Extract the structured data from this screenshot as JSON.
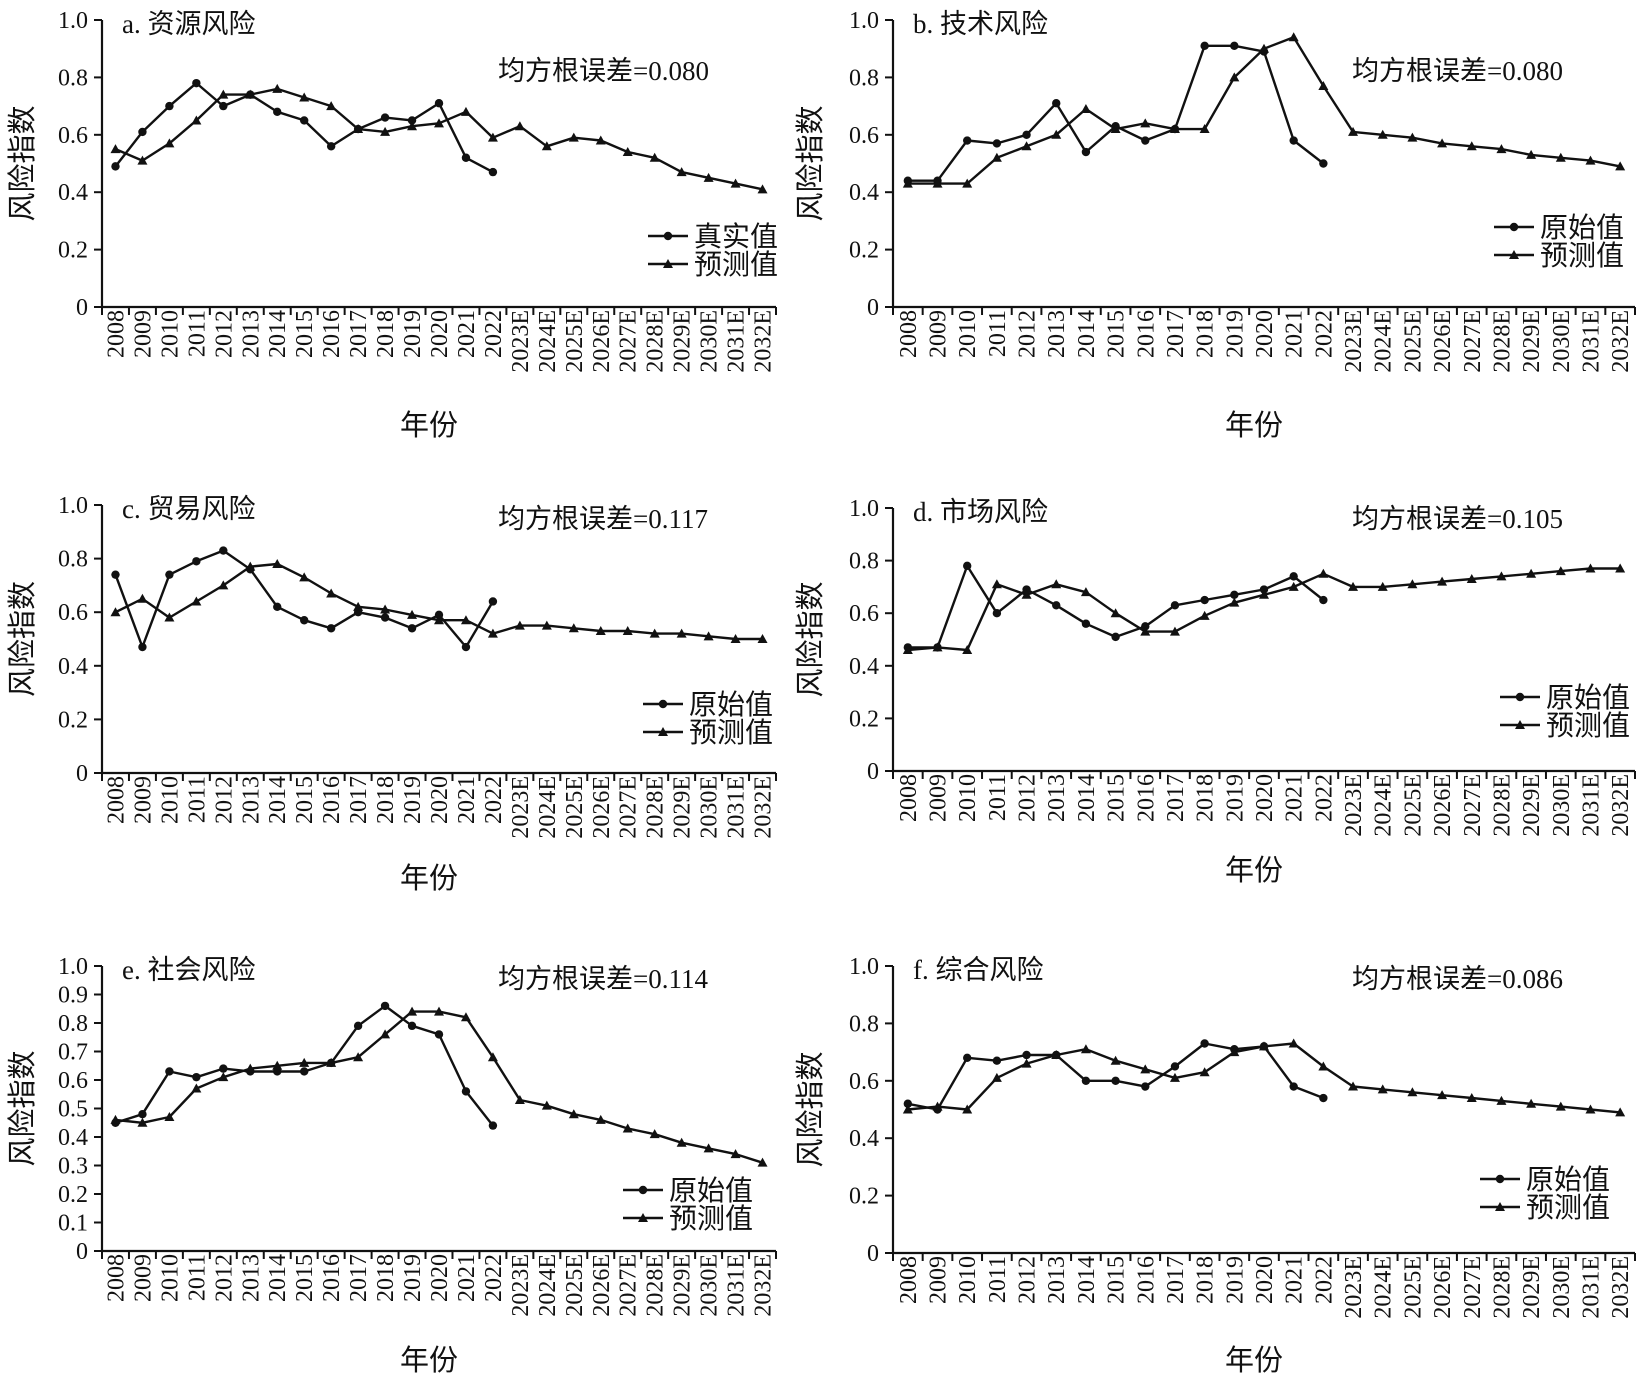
{
  "chart_data": [
    {
      "type": "line",
      "title": "a. 资源风险",
      "annotation": "均方根误差=0.080",
      "xlabel": "年份",
      "ylabel": "风险指数",
      "ylim": [
        0,
        1.0
      ],
      "yticks": [
        "0",
        "0.2",
        "0.4",
        "0.6",
        "0.8",
        "1.0"
      ],
      "categories": [
        "2008",
        "2009",
        "2010",
        "2011",
        "2012",
        "2013",
        "2014",
        "2015",
        "2016",
        "2017",
        "2018",
        "2019",
        "2020",
        "2021",
        "2022",
        "2023E",
        "2024E",
        "2025E",
        "2026E",
        "2027E",
        "2028E",
        "2029E",
        "2030E",
        "2031E",
        "2032E"
      ],
      "legend_position": "center-right",
      "series": [
        {
          "name": "真实值",
          "marker": "circle",
          "values": [
            0.49,
            0.61,
            0.7,
            0.78,
            0.7,
            0.74,
            0.68,
            0.65,
            0.56,
            0.62,
            0.66,
            0.65,
            0.71,
            0.52,
            0.47,
            null,
            null,
            null,
            null,
            null,
            null,
            null,
            null,
            null,
            null
          ]
        },
        {
          "name": "预测值",
          "marker": "triangle",
          "values": [
            0.55,
            0.51,
            0.57,
            0.65,
            0.74,
            0.74,
            0.76,
            0.73,
            0.7,
            0.62,
            0.61,
            0.63,
            0.64,
            0.68,
            0.59,
            0.63,
            0.56,
            0.59,
            0.58,
            0.54,
            0.52,
            0.47,
            0.45,
            0.43,
            0.41
          ]
        }
      ]
    },
    {
      "type": "line",
      "title": "b. 技术风险",
      "annotation": "均方根误差=0.080",
      "xlabel": "年份",
      "ylabel": "风险指数",
      "ylim": [
        0,
        1.0
      ],
      "yticks": [
        "0",
        "0.2",
        "0.4",
        "0.6",
        "0.8",
        "1.0"
      ],
      "categories": [
        "2008",
        "2009",
        "2010",
        "2011",
        "2012",
        "2013",
        "2014",
        "2015",
        "2016",
        "2017",
        "2018",
        "2019",
        "2020",
        "2021",
        "2022",
        "2023E",
        "2024E",
        "2025E",
        "2026E",
        "2027E",
        "2028E",
        "2029E",
        "2030E",
        "2031E",
        "2032E"
      ],
      "legend_position": "center-right",
      "series": [
        {
          "name": "原始值",
          "marker": "circle",
          "values": [
            0.44,
            0.44,
            0.58,
            0.57,
            0.6,
            0.71,
            0.54,
            0.63,
            0.58,
            0.62,
            0.91,
            0.91,
            0.89,
            0.58,
            0.5,
            null,
            null,
            null,
            null,
            null,
            null,
            null,
            null,
            null,
            null
          ]
        },
        {
          "name": "预测值",
          "marker": "triangle",
          "values": [
            0.43,
            0.43,
            0.43,
            0.52,
            0.56,
            0.6,
            0.69,
            0.62,
            0.64,
            0.62,
            0.62,
            0.8,
            0.9,
            0.94,
            0.77,
            0.61,
            0.6,
            0.59,
            0.57,
            0.56,
            0.55,
            0.53,
            0.52,
            0.51,
            0.49
          ]
        }
      ]
    },
    {
      "type": "line",
      "title": "c. 贸易风险",
      "annotation": "均方根误差=0.117",
      "xlabel": "年份",
      "ylabel": "风险指数",
      "ylim": [
        0,
        1.0
      ],
      "yticks": [
        "0",
        "0.2",
        "0.4",
        "0.6",
        "0.8",
        "1.0"
      ],
      "categories": [
        "2008",
        "2009",
        "2010",
        "2011",
        "2012",
        "2013",
        "2014",
        "2015",
        "2016",
        "2017",
        "2018",
        "2019",
        "2020",
        "2021",
        "2022",
        "2023E",
        "2024E",
        "2025E",
        "2026E",
        "2027E",
        "2028E",
        "2029E",
        "2030E",
        "2031E",
        "2032E"
      ],
      "legend_position": "center-right",
      "series": [
        {
          "name": "原始值",
          "marker": "circle",
          "values": [
            0.74,
            0.47,
            0.74,
            0.79,
            0.83,
            0.76,
            0.62,
            0.57,
            0.54,
            0.6,
            0.58,
            0.54,
            0.59,
            0.47,
            0.64,
            null,
            null,
            null,
            null,
            null,
            null,
            null,
            null,
            null,
            null
          ]
        },
        {
          "name": "预测值",
          "marker": "triangle",
          "values": [
            0.6,
            0.65,
            0.58,
            0.64,
            0.7,
            0.77,
            0.78,
            0.73,
            0.67,
            0.62,
            0.61,
            0.59,
            0.57,
            0.57,
            0.52,
            0.55,
            0.55,
            0.54,
            0.53,
            0.53,
            0.52,
            0.52,
            0.51,
            0.5,
            0.5
          ]
        }
      ]
    },
    {
      "type": "line",
      "title": "d. 市场风险",
      "annotation": "均方根误差=0.105",
      "xlabel": "年份",
      "ylabel": "风险指数",
      "ylim": [
        0,
        1.0
      ],
      "yticks": [
        "0",
        "0.2",
        "0.4",
        "0.6",
        "0.8",
        "1.0"
      ],
      "categories": [
        "2008",
        "2009",
        "2010",
        "2011",
        "2012",
        "2013",
        "2014",
        "2015",
        "2016",
        "2017",
        "2018",
        "2019",
        "2020",
        "2021",
        "2022",
        "2023E",
        "2024E",
        "2025E",
        "2026E",
        "2027E",
        "2028E",
        "2029E",
        "2030E",
        "2031E",
        "2032E"
      ],
      "legend_position": "center-right",
      "series": [
        {
          "name": "原始值",
          "marker": "circle",
          "values": [
            0.47,
            0.47,
            0.78,
            0.6,
            0.69,
            0.63,
            0.56,
            0.51,
            0.55,
            0.63,
            0.65,
            0.67,
            0.69,
            0.74,
            0.65,
            null,
            null,
            null,
            null,
            null,
            null,
            null,
            null,
            null,
            null
          ]
        },
        {
          "name": "预测值",
          "marker": "triangle",
          "values": [
            0.46,
            0.47,
            0.46,
            0.71,
            0.67,
            0.71,
            0.68,
            0.6,
            0.53,
            0.53,
            0.59,
            0.64,
            0.67,
            0.7,
            0.75,
            0.7,
            0.7,
            0.71,
            0.72,
            0.73,
            0.74,
            0.75,
            0.76,
            0.77,
            0.77
          ]
        }
      ]
    },
    {
      "type": "line",
      "title": "e. 社会风险",
      "annotation": "均方根误差=0.114",
      "xlabel": "年份",
      "ylabel": "风险指数",
      "ylim": [
        0,
        1.0
      ],
      "yticks": [
        "0",
        "0.1",
        "0.2",
        "0.3",
        "0.4",
        "0.5",
        "0.6",
        "0.7",
        "0.8",
        "0.9",
        "1.0"
      ],
      "categories": [
        "2008",
        "2009",
        "2010",
        "2011",
        "2012",
        "2013",
        "2014",
        "2015",
        "2016",
        "2017",
        "2018",
        "2019",
        "2020",
        "2021",
        "2022",
        "2023E",
        "2024E",
        "2025E",
        "2026E",
        "2027E",
        "2028E",
        "2029E",
        "2030E",
        "2031E",
        "2032E"
      ],
      "legend_position": "bottom-right",
      "series": [
        {
          "name": "原始值",
          "marker": "circle",
          "values": [
            0.45,
            0.48,
            0.63,
            0.61,
            0.64,
            0.63,
            0.63,
            0.63,
            0.66,
            0.79,
            0.86,
            0.79,
            0.76,
            0.56,
            0.44,
            null,
            null,
            null,
            null,
            null,
            null,
            null,
            null,
            null,
            null
          ]
        },
        {
          "name": "预测值",
          "marker": "triangle",
          "values": [
            0.46,
            0.45,
            0.47,
            0.57,
            0.61,
            0.64,
            0.65,
            0.66,
            0.66,
            0.68,
            0.76,
            0.84,
            0.84,
            0.82,
            0.68,
            0.53,
            0.51,
            0.48,
            0.46,
            0.43,
            0.41,
            0.38,
            0.36,
            0.34,
            0.31
          ]
        }
      ]
    },
    {
      "type": "line",
      "title": "f. 综合风险",
      "annotation": "均方根误差=0.086",
      "xlabel": "年份",
      "ylabel": "风险指数",
      "ylim": [
        0,
        1.0
      ],
      "yticks": [
        "0",
        "0.2",
        "0.4",
        "0.6",
        "0.8",
        "1.0"
      ],
      "categories": [
        "2008",
        "2009",
        "2010",
        "2011",
        "2012",
        "2013",
        "2014",
        "2015",
        "2016",
        "2017",
        "2018",
        "2019",
        "2020",
        "2021",
        "2022",
        "2023E",
        "2024E",
        "2025E",
        "2026E",
        "2027E",
        "2028E",
        "2029E",
        "2030E",
        "2031E",
        "2032E"
      ],
      "legend_position": "bottom-right",
      "series": [
        {
          "name": "原始值",
          "marker": "circle",
          "values": [
            0.52,
            0.5,
            0.68,
            0.67,
            0.69,
            0.69,
            0.6,
            0.6,
            0.58,
            0.65,
            0.73,
            0.71,
            0.72,
            0.58,
            0.54,
            null,
            null,
            null,
            null,
            null,
            null,
            null,
            null,
            null,
            null
          ]
        },
        {
          "name": "预测值",
          "marker": "triangle",
          "values": [
            0.5,
            0.51,
            0.5,
            0.61,
            0.66,
            0.69,
            0.71,
            0.67,
            0.64,
            0.61,
            0.63,
            0.7,
            0.72,
            0.73,
            0.65,
            0.58,
            0.57,
            0.56,
            0.55,
            0.54,
            0.53,
            0.52,
            0.51,
            0.5,
            0.49
          ]
        }
      ]
    }
  ]
}
